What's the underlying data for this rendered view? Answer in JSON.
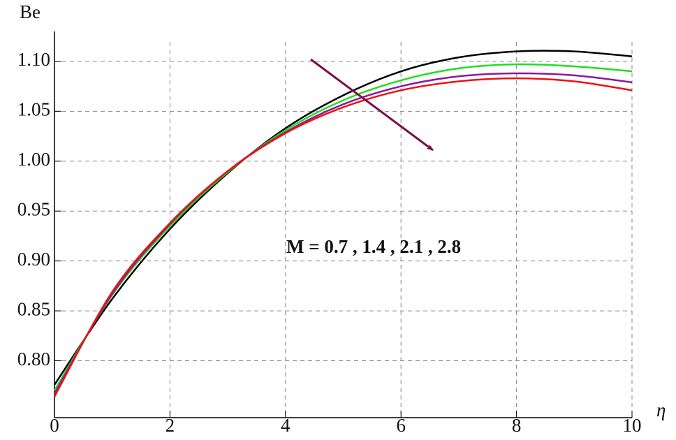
{
  "chart_data": {
    "type": "line",
    "ylabel": "Be",
    "xlabel": "η",
    "annotation": "M = 0.7 , 1.4 , 2.1 , 2.8",
    "x": [
      0,
      1,
      2,
      3,
      4,
      5,
      6,
      7,
      8,
      9,
      10
    ],
    "series": [
      {
        "color": "#000000",
        "values": [
          0.776,
          0.862,
          0.932,
          0.988,
          1.033,
          1.066,
          1.09,
          1.104,
          1.11,
          1.11,
          1.105
        ]
      },
      {
        "color": "#22dd22",
        "values": [
          0.77,
          0.866,
          0.935,
          0.989,
          1.031,
          1.061,
          1.081,
          1.093,
          1.097,
          1.095,
          1.09
        ]
      },
      {
        "color": "#8b1a9b",
        "values": [
          0.767,
          0.867,
          0.937,
          0.99,
          1.029,
          1.057,
          1.075,
          1.085,
          1.088,
          1.086,
          1.079
        ]
      },
      {
        "color": "#ee1111",
        "values": [
          0.764,
          0.869,
          0.938,
          0.99,
          1.028,
          1.054,
          1.071,
          1.08,
          1.083,
          1.08,
          1.071
        ]
      }
    ],
    "xlim": [
      0,
      10
    ],
    "xticks": [
      0,
      2,
      4,
      6,
      8,
      10
    ],
    "ylim": [
      0.743,
      1.13
    ],
    "yticks": [
      {
        "value": 0.8,
        "label": "0.80"
      },
      0.85,
      {
        "value": 0.9,
        "label": "0.90"
      },
      0.95,
      {
        "value": 1,
        "label": "1.00"
      },
      1.05,
      {
        "value": 1.1,
        "label": "1.10"
      }
    ],
    "grid": true
  }
}
